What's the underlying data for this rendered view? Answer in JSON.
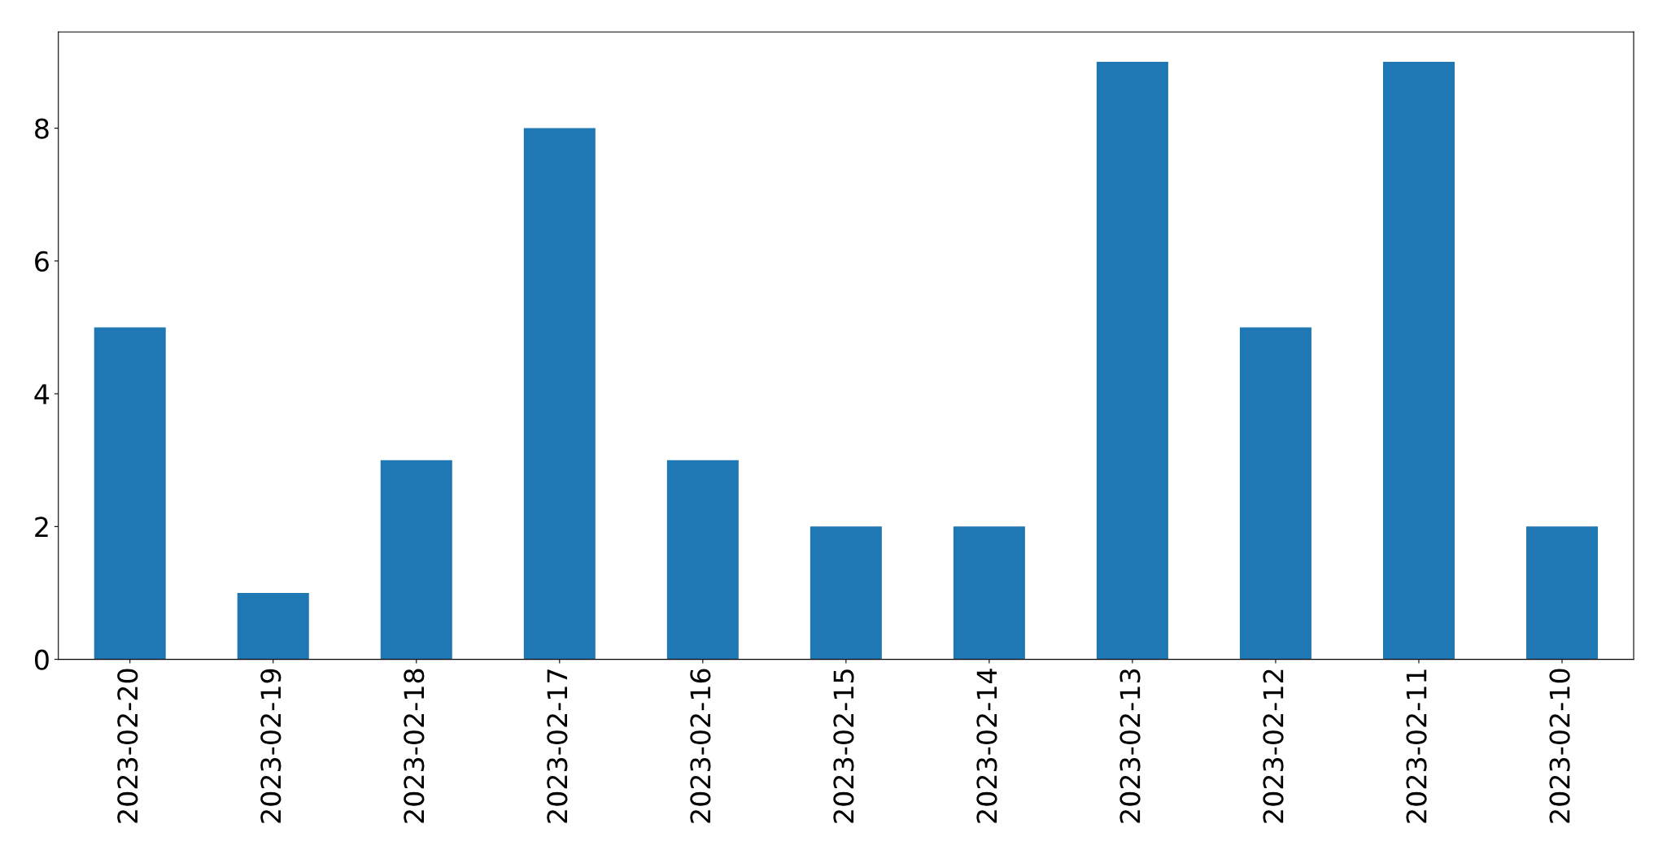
{
  "chart_data": {
    "type": "bar",
    "categories": [
      "2023-02-20",
      "2023-02-19",
      "2023-02-18",
      "2023-02-17",
      "2023-02-16",
      "2023-02-15",
      "2023-02-14",
      "2023-02-13",
      "2023-02-12",
      "2023-02-11",
      "2023-02-10"
    ],
    "values": [
      5,
      1,
      3,
      8,
      3,
      2,
      2,
      9,
      5,
      9,
      2
    ],
    "color": "#1f77b4",
    "ylim": [
      0,
      9.45
    ],
    "yticks": [
      0,
      2,
      4,
      6,
      8
    ],
    "grid": false
  }
}
